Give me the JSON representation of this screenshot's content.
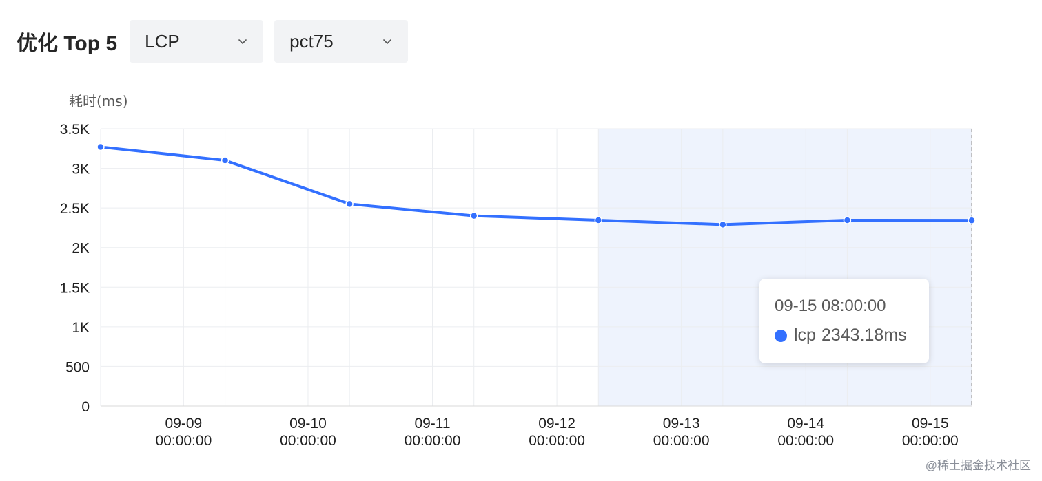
{
  "header": {
    "title": "优化 Top 5",
    "metric_select": {
      "value": "LCP"
    },
    "percentile_select": {
      "value": "pct75"
    }
  },
  "colors": {
    "series": "#3370ff",
    "grid": "#ebedf0",
    "highlight": "#eef3fd",
    "axis_text": "#1f1f1f"
  },
  "icons": {
    "chevron": "chevron-down-icon"
  },
  "chart_data": {
    "type": "line",
    "ylabel": "耗时(ms)",
    "ylim": [
      0,
      3500
    ],
    "yticks": [
      0,
      500,
      1000,
      1500,
      2000,
      2500,
      3000,
      3500
    ],
    "ytick_labels": [
      "0",
      "500",
      "1K",
      "1.5K",
      "2K",
      "2.5K",
      "3K",
      "3.5K"
    ],
    "xlim": [
      "09-08 08:00:00",
      "09-15 08:00:00"
    ],
    "x_ticks": [
      {
        "date": "09-09",
        "time": "00:00:00"
      },
      {
        "date": "09-10",
        "time": "00:00:00"
      },
      {
        "date": "09-11",
        "time": "00:00:00"
      },
      {
        "date": "09-12",
        "time": "00:00:00"
      },
      {
        "date": "09-13",
        "time": "00:00:00"
      },
      {
        "date": "09-14",
        "time": "00:00:00"
      },
      {
        "date": "09-15",
        "time": "00:00:00"
      }
    ],
    "grid": true,
    "highlight_range": [
      "09-12 08:00:00",
      "09-15 08:00:00"
    ],
    "series": [
      {
        "name": "lcp",
        "x": [
          "09-08 08:00:00",
          "09-09 08:00:00",
          "09-10 08:00:00",
          "09-11 08:00:00",
          "09-12 08:00:00",
          "09-13 08:00:00",
          "09-14 08:00:00",
          "09-15 08:00:00"
        ],
        "values": [
          3270,
          3100,
          2550,
          2400,
          2345,
          2290,
          2345,
          2343.18
        ]
      }
    ],
    "tooltip": {
      "time": "09-15 08:00:00",
      "series": "lcp",
      "value": "2343.18ms"
    }
  },
  "watermark": "@稀土掘金技术社区"
}
